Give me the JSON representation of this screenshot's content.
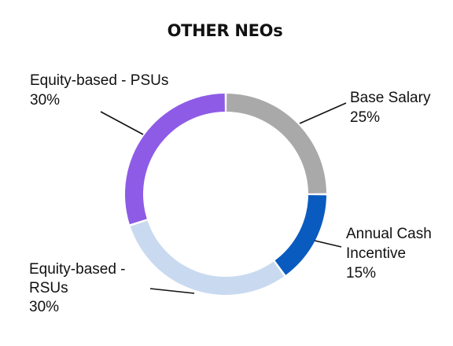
{
  "chart_data": {
    "type": "pie",
    "style": "donut",
    "title": "OTHER NEOs",
    "slices": [
      {
        "label": "Base Salary",
        "value_label": "25%",
        "value": 25,
        "color": "#A9A9A9"
      },
      {
        "label": "Annual Cash Incentive",
        "value_label": "15%",
        "value": 15,
        "color": "#0A5BBF"
      },
      {
        "label": "Equity-based - RSUs",
        "value_label": "30%",
        "value": 30,
        "color": "#C9DAF0"
      },
      {
        "label": "Equity-based - PSUs",
        "value_label": "30%",
        "value": 30,
        "color": "#8E5BE6"
      }
    ]
  }
}
